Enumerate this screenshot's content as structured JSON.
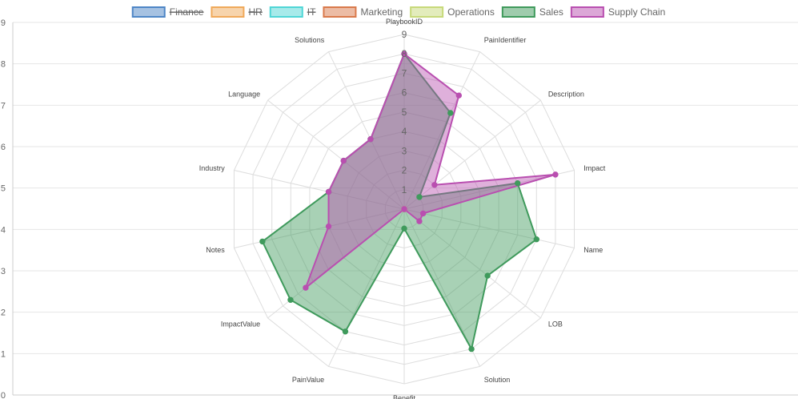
{
  "chart_data": {
    "type": "radar",
    "axes": [
      "PlaybookID",
      "PainIdentifier",
      "Description",
      "Impact",
      "Name",
      "LOB",
      "Solution",
      "Benefit",
      "PainValue",
      "ImpactValue",
      "Notes",
      "Industry",
      "Language",
      "Solutions"
    ],
    "r_range": [
      0,
      9
    ],
    "r_ticks": [
      "0",
      "1",
      "2",
      "3",
      "4",
      "5",
      "6",
      "7",
      "8",
      "9"
    ],
    "y_range": [
      0,
      9
    ],
    "y_ticks": [
      "0",
      "1",
      "2",
      "3",
      "4",
      "5",
      "6",
      "7",
      "8",
      "9"
    ],
    "grid": true,
    "legend_position": "top",
    "series": [
      {
        "name": "Finance",
        "color": "#4e86c6",
        "hidden": true,
        "values": [
          0,
          0,
          0,
          0,
          0,
          0,
          0,
          0,
          0,
          0,
          0,
          0,
          0,
          0
        ]
      },
      {
        "name": "HR",
        "color": "#f0a95a",
        "hidden": true,
        "values": [
          0,
          0,
          0,
          0,
          0,
          0,
          0,
          0,
          0,
          0,
          0,
          0,
          0,
          0
        ]
      },
      {
        "name": "IT",
        "color": "#4fd6d6",
        "hidden": true,
        "values": [
          0,
          0,
          0,
          0,
          0,
          0,
          0,
          0,
          0,
          0,
          0,
          0,
          0,
          0
        ]
      },
      {
        "name": "Marketing",
        "color": "#d9794b",
        "hidden": false,
        "values": [
          0,
          0,
          0,
          0,
          0,
          0,
          0,
          0,
          0,
          0,
          0,
          0,
          0,
          0
        ]
      },
      {
        "name": "Operations",
        "color": "#c7d97a",
        "hidden": false,
        "values": [
          0,
          0,
          0,
          0,
          0,
          0,
          0,
          0,
          0,
          0,
          0,
          0,
          0,
          0
        ]
      },
      {
        "name": "Sales",
        "color": "#3f9a5c",
        "hidden": false,
        "values": [
          8,
          5.5,
          1,
          6,
          7,
          5.5,
          8,
          1,
          7,
          7.5,
          7.5,
          4,
          4,
          4
        ]
      },
      {
        "name": "Supply Chain",
        "color": "#b94fb0",
        "hidden": false,
        "values": [
          8,
          6.5,
          2,
          8,
          1,
          1,
          0,
          0,
          0,
          6.5,
          4,
          4,
          4,
          4
        ]
      }
    ]
  }
}
